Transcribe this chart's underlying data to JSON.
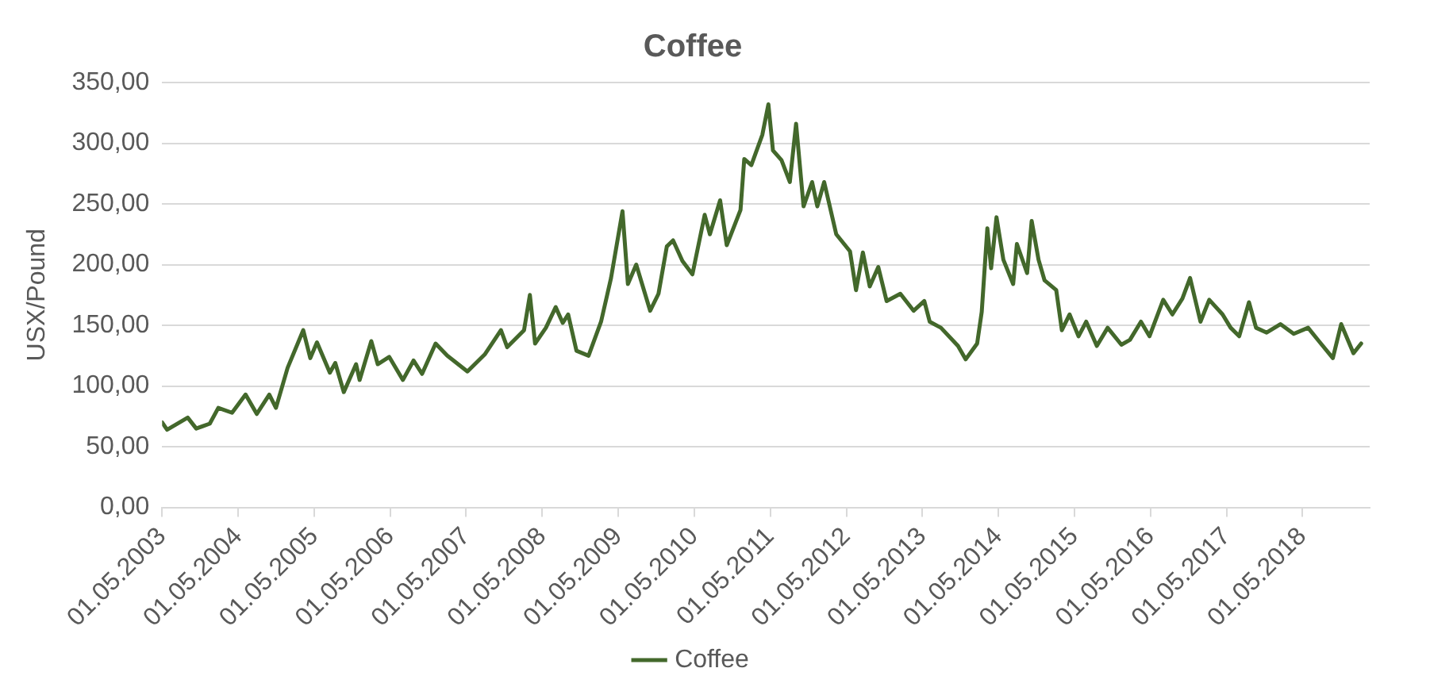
{
  "chart_data": {
    "type": "line",
    "title": "Coffee",
    "ylabel": "USX/Pound",
    "x": [
      "2003-05-01",
      "2003-05-25",
      "2003-09-01",
      "2003-10-12",
      "2003-12-16",
      "2004-01-26",
      "2004-04-01",
      "2004-06-05",
      "2004-07-29",
      "2004-09-27",
      "2004-10-29",
      "2004-12-24",
      "2005-03-09",
      "2005-04-12",
      "2005-05-14",
      "2005-07-15",
      "2005-08-10",
      "2005-09-20",
      "2005-11-18",
      "2005-12-05",
      "2006-01-30",
      "2006-03-02",
      "2006-04-26",
      "2006-07-01",
      "2006-08-21",
      "2006-10-01",
      "2006-12-05",
      "2007-01-30",
      "2007-05-07",
      "2007-07-29",
      "2007-10-15",
      "2007-11-14",
      "2008-02-03",
      "2008-03-02",
      "2008-03-27",
      "2008-05-18",
      "2008-07-04",
      "2008-08-07",
      "2008-09-02",
      "2008-10-12",
      "2008-12-09",
      "2009-02-07",
      "2009-03-27",
      "2009-05-21",
      "2009-06-16",
      "2009-07-26",
      "2009-10-01",
      "2009-11-10",
      "2009-12-20",
      "2010-01-19",
      "2010-03-05",
      "2010-04-22",
      "2010-06-20",
      "2010-07-15",
      "2010-09-02",
      "2010-10-04",
      "2010-12-09",
      "2010-12-27",
      "2011-01-30",
      "2011-03-24",
      "2011-04-22",
      "2011-05-14",
      "2011-06-24",
      "2011-08-03",
      "2011-09-02",
      "2011-10-08",
      "2011-11-18",
      "2011-12-13",
      "2012-01-15",
      "2012-03-13",
      "2012-05-18",
      "2012-06-16",
      "2012-07-19",
      "2012-08-21",
      "2012-10-01",
      "2012-11-10",
      "2013-01-15",
      "2013-03-20",
      "2013-05-10",
      "2013-06-05",
      "2013-07-29",
      "2013-10-19",
      "2013-11-25",
      "2014-01-19",
      "2014-02-10",
      "2014-03-09",
      "2014-03-27",
      "2014-04-22",
      "2014-05-25",
      "2014-07-11",
      "2014-07-29",
      "2014-09-16",
      "2014-10-08",
      "2014-11-10",
      "2014-12-09",
      "2015-02-03",
      "2015-03-02",
      "2015-04-08",
      "2015-05-21",
      "2015-06-27",
      "2015-08-17",
      "2015-10-08",
      "2015-12-13",
      "2016-01-23",
      "2016-03-16",
      "2016-04-26",
      "2016-07-01",
      "2016-08-14",
      "2016-10-01",
      "2016-11-07",
      "2016-12-27",
      "2017-02-07",
      "2017-04-12",
      "2017-05-21",
      "2017-07-01",
      "2017-08-17",
      "2017-09-20",
      "2017-11-10",
      "2018-01-15",
      "2018-03-20",
      "2018-05-28",
      "2018-07-19",
      "2018-09-24",
      "2018-11-03",
      "2019-01-01",
      "2019-02-07"
    ],
    "series": [
      {
        "name": "Coffee",
        "color": "#43682b",
        "values": [
          70,
          64,
          74,
          65,
          69,
          82,
          78,
          93,
          77,
          93,
          82,
          115,
          146,
          123,
          136,
          111,
          119,
          95,
          118,
          105,
          137,
          118,
          124,
          105,
          121,
          110,
          135,
          125,
          112,
          126,
          146,
          132,
          146,
          175,
          135,
          148,
          165,
          152,
          159,
          129,
          125,
          153,
          189,
          244,
          184,
          200,
          162,
          176,
          215,
          220,
          203,
          192,
          241,
          225,
          253,
          216,
          245,
          287,
          282,
          307,
          332,
          294,
          286,
          268,
          316,
          248,
          268,
          248,
          268,
          225,
          211,
          179,
          210,
          182,
          198,
          170,
          176,
          162,
          170,
          153,
          148,
          133,
          122,
          135,
          161,
          230,
          197,
          239,
          204,
          184,
          217,
          193,
          236,
          204,
          187,
          179,
          146,
          159,
          141,
          153,
          133,
          148,
          134,
          138,
          153,
          141,
          171,
          159,
          172,
          189,
          153,
          171,
          159,
          148,
          141,
          169,
          148,
          144,
          151,
          143,
          148,
          137,
          123,
          151,
          127,
          135
        ]
      }
    ],
    "xlim": [
      "2003-05-01",
      "2019-03-20"
    ],
    "xticks": [
      {
        "value": "2003-05-01",
        "label": "01.05.2003"
      },
      {
        "value": "2004-05-01",
        "label": "01.05.2004"
      },
      {
        "value": "2005-05-01",
        "label": "01.05.2005"
      },
      {
        "value": "2006-05-01",
        "label": "01.05.2006"
      },
      {
        "value": "2007-05-01",
        "label": "01.05.2007"
      },
      {
        "value": "2008-05-01",
        "label": "01.05.2008"
      },
      {
        "value": "2009-05-01",
        "label": "01.05.2009"
      },
      {
        "value": "2010-05-01",
        "label": "01.05.2010"
      },
      {
        "value": "2011-05-01",
        "label": "01.05.2011"
      },
      {
        "value": "2012-05-01",
        "label": "01.05.2012"
      },
      {
        "value": "2013-05-01",
        "label": "01.05.2013"
      },
      {
        "value": "2014-05-01",
        "label": "01.05.2014"
      },
      {
        "value": "2015-05-01",
        "label": "01.05.2015"
      },
      {
        "value": "2016-05-01",
        "label": "01.05.2016"
      },
      {
        "value": "2017-05-01",
        "label": "01.05.2017"
      },
      {
        "value": "2018-05-01",
        "label": "01.05.2018"
      }
    ],
    "ylim": [
      0,
      350
    ],
    "yticks": [
      {
        "value": 0,
        "label": "0,00"
      },
      {
        "value": 50,
        "label": "50,00"
      },
      {
        "value": 100,
        "label": "100,00"
      },
      {
        "value": 150,
        "label": "150,00"
      },
      {
        "value": 200,
        "label": "200,00"
      },
      {
        "value": 250,
        "label": "250,00"
      },
      {
        "value": 300,
        "label": "300,00"
      },
      {
        "value": 350,
        "label": "350,00"
      }
    ],
    "grid": "y",
    "legend": "bottom",
    "marker": "none",
    "line_style": "solid"
  }
}
